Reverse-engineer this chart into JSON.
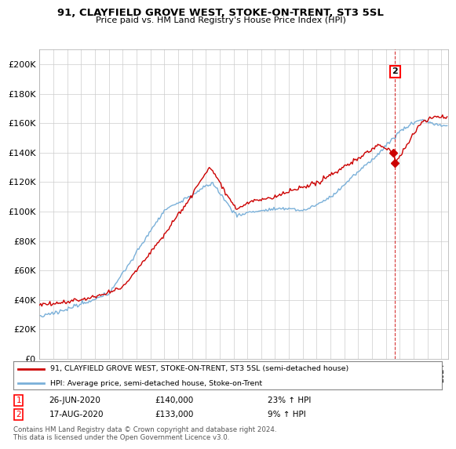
{
  "title": "91, CLAYFIELD GROVE WEST, STOKE-ON-TRENT, ST3 5SL",
  "subtitle": "Price paid vs. HM Land Registry's House Price Index (HPI)",
  "legend_line1": "91, CLAYFIELD GROVE WEST, STOKE-ON-TRENT, ST3 5SL (semi-detached house)",
  "legend_line2": "HPI: Average price, semi-detached house, Stoke-on-Trent",
  "footnote": "Contains HM Land Registry data © Crown copyright and database right 2024.\nThis data is licensed under the Open Government Licence v3.0.",
  "table_rows": [
    {
      "num": "1",
      "date": "26-JUN-2020",
      "price": "£140,000",
      "change": "23% ↑ HPI"
    },
    {
      "num": "2",
      "date": "17-AUG-2020",
      "price": "£133,000",
      "change": "9% ↑ HPI"
    }
  ],
  "hpi_color": "#7ab0d9",
  "price_color": "#cc0000",
  "annotation_color": "#cc0000",
  "grid_color": "#cccccc",
  "ylim": [
    0,
    210000
  ],
  "yticks": [
    0,
    20000,
    40000,
    60000,
    80000,
    100000,
    120000,
    140000,
    160000,
    180000,
    200000
  ],
  "ytick_labels": [
    "£0",
    "£20K",
    "£40K",
    "£60K",
    "£80K",
    "£100K",
    "£120K",
    "£140K",
    "£160K",
    "£180K",
    "£200K"
  ],
  "xlim_start": 1995.0,
  "xlim_end": 2024.5
}
